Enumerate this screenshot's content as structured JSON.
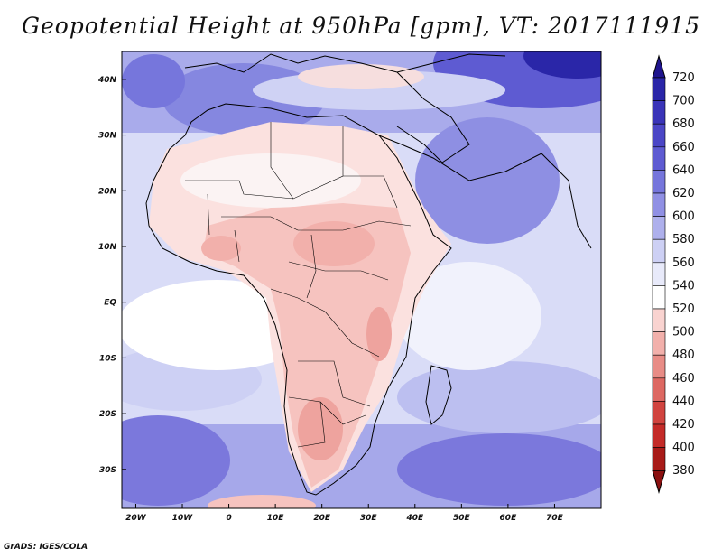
{
  "title": "Geopotential Height at 950hPa [gpm], VT: 2017111915",
  "footer": "GrADS: IGES/COLA",
  "map": {
    "lon_range": [
      -23,
      80
    ],
    "lat_range": [
      -37,
      45
    ],
    "x_ticks": [
      "20W",
      "10W",
      "0",
      "10E",
      "20E",
      "30E",
      "40E",
      "50E",
      "60E",
      "70E"
    ],
    "y_ticks": [
      "40N",
      "30N",
      "20N",
      "10N",
      "EQ",
      "10S",
      "20S",
      "30S"
    ]
  },
  "colorbar": {
    "levels": [
      "720",
      "700",
      "680",
      "660",
      "640",
      "620",
      "600",
      "580",
      "560",
      "540",
      "520",
      "500",
      "480",
      "460",
      "440",
      "420",
      "400",
      "380"
    ],
    "colors": [
      "#1f148e",
      "#2a26a8",
      "#3a34b8",
      "#4b46c6",
      "#5e5bd2",
      "#7676dc",
      "#9090e4",
      "#aeb0ec",
      "#cdd0f4",
      "#e8eafa",
      "#ffffff",
      "#f9d3d0",
      "#f2b0ab",
      "#e88c86",
      "#dd6862",
      "#d1443f",
      "#c42b28",
      "#a81b18",
      "#8b1010"
    ]
  },
  "colors": {
    "ocean_high": "#7b78dc",
    "land_low": "#f5b8b3",
    "coast": "#000000"
  }
}
